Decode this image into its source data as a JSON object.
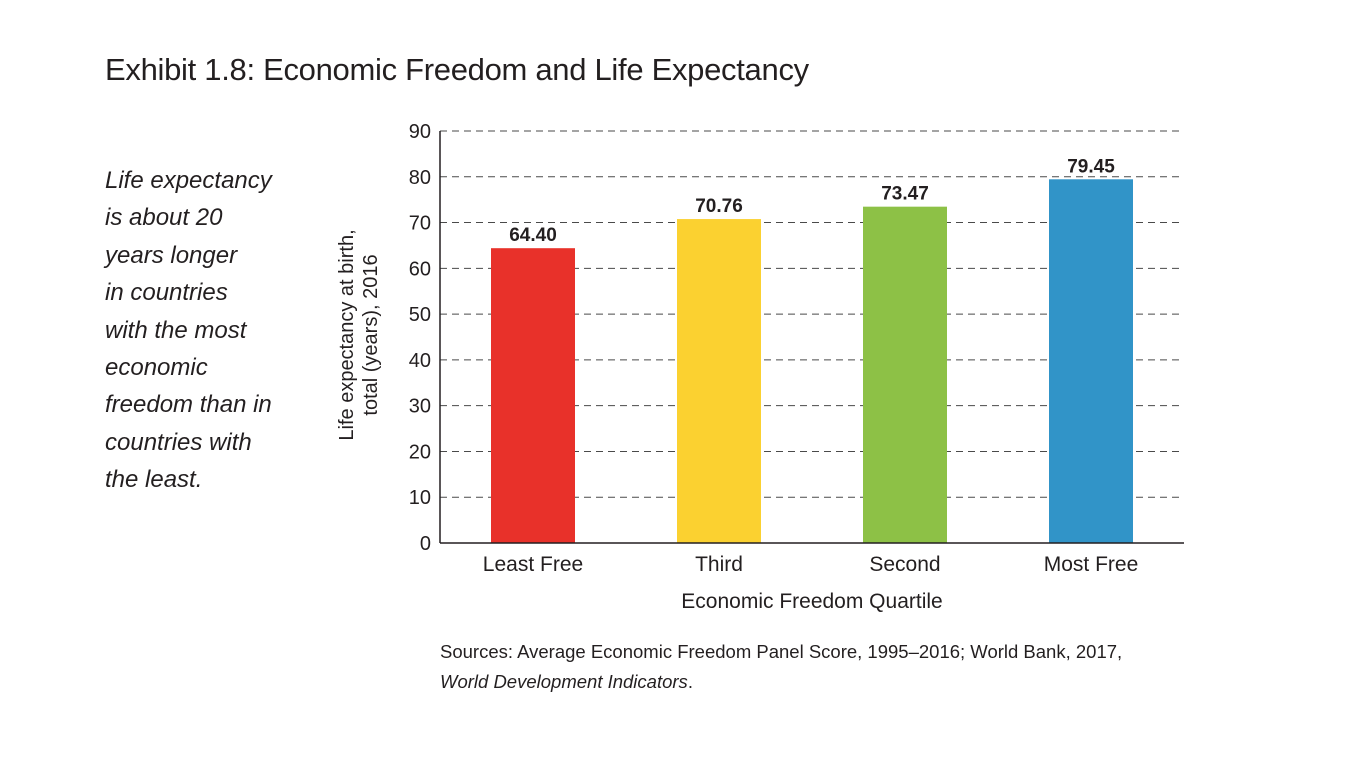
{
  "page": {
    "title": "Exhibit 1.8: Economic Freedom and Life Expectancy",
    "caption_lines": [
      "Life expectancy",
      "is about 20",
      "years longer",
      "in countries",
      "with the most",
      "economic",
      "freedom than in",
      "countries with",
      "the least."
    ],
    "sources_line1": "Sources: Average Economic Freedom Panel Score, 1995–2016; World Bank, 2017,",
    "sources_line2": "World Development Indicators",
    "sources_line2_suffix": "."
  },
  "chart_data": {
    "type": "bar",
    "title": "Exhibit 1.8: Economic Freedom and Life Expectancy",
    "categories": [
      "Least Free",
      "Third",
      "Second",
      "Most Free"
    ],
    "values": [
      64.4,
      70.76,
      73.47,
      79.45
    ],
    "value_labels": [
      "64.40",
      "70.76",
      "73.47",
      "79.45"
    ],
    "colors": [
      "#e8312a",
      "#fbd130",
      "#8dc146",
      "#3194c8"
    ],
    "xlabel": "Economic Freedom Quartile",
    "ylabel_lines": [
      "Life expectancy at birth,",
      "total (years), 2016"
    ],
    "ylim": [
      0,
      90
    ],
    "yticks": [
      0,
      10,
      20,
      30,
      40,
      50,
      60,
      70,
      80,
      90
    ],
    "grid": true,
    "legend": "none"
  }
}
